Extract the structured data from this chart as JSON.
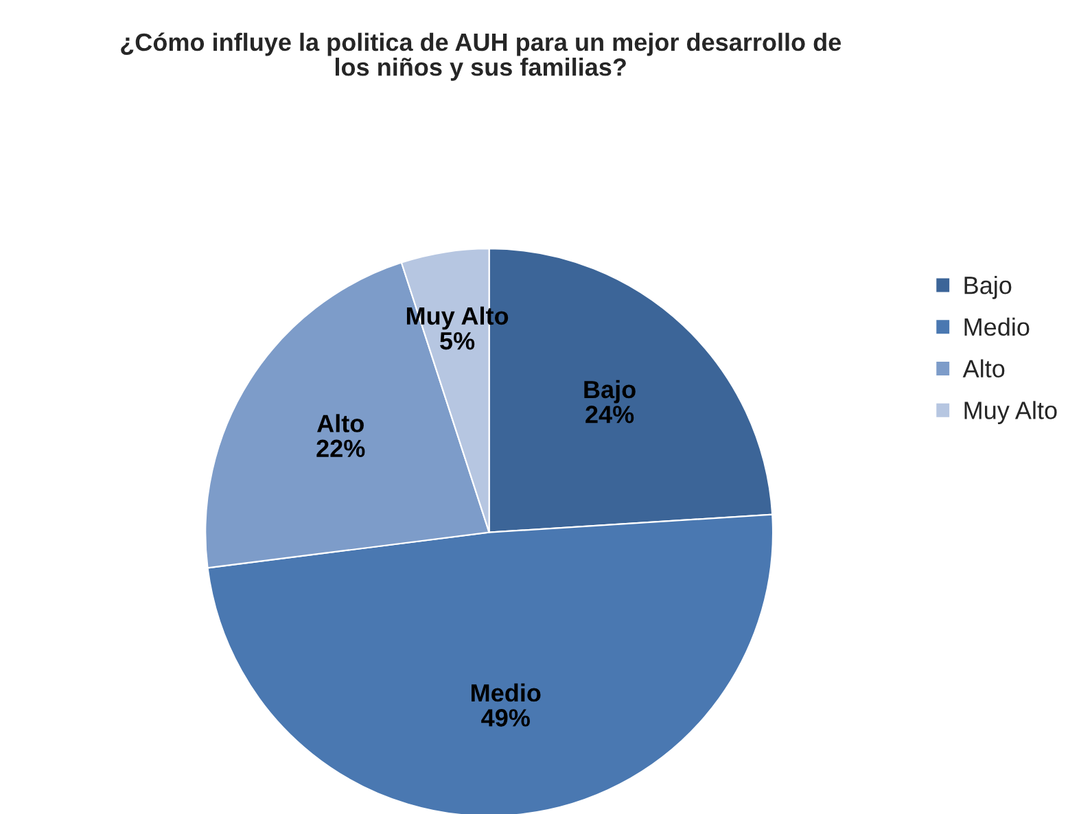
{
  "chart_data": {
    "type": "pie",
    "title": "¿Cómo influye la politica de AUH para un mejor desarrollo de\nlos niños y sus familias?",
    "categories": [
      "Bajo",
      "Medio",
      "Alto",
      "Muy Alto"
    ],
    "values": [
      24,
      49,
      22,
      5
    ],
    "value_labels": [
      "24%",
      "49%",
      "22%",
      "5%"
    ],
    "colors": [
      "#3c6598",
      "#4a78b1",
      "#7d9cc9",
      "#b6c6e1"
    ],
    "legend": "right"
  }
}
